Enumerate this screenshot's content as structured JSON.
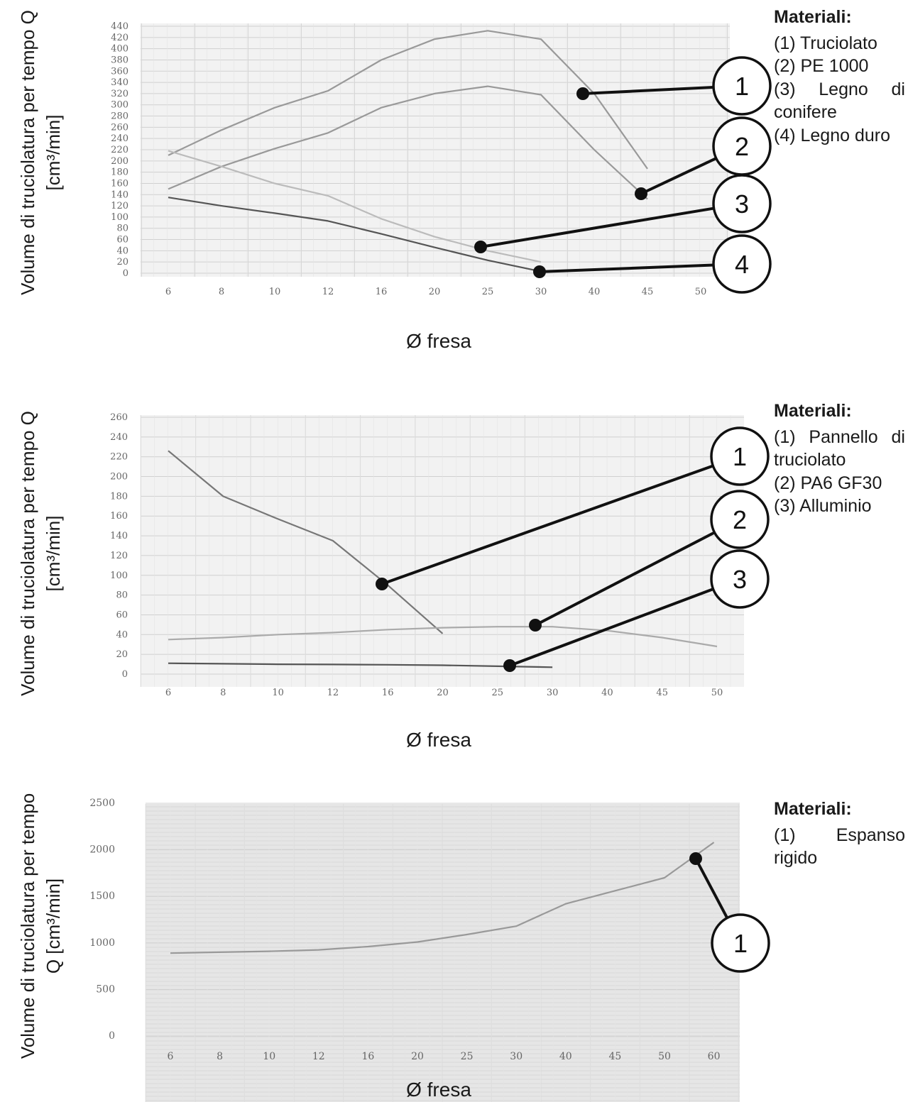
{
  "chart_data": [
    {
      "type": "line",
      "ylabel_lines": [
        "Volume di truciolatura per tempo Q",
        "[cm³/min]"
      ],
      "xlabel": "Ø fresa",
      "categories": [
        "6",
        "8",
        "10",
        "12",
        "16",
        "20",
        "25",
        "30",
        "40",
        "45",
        "50"
      ],
      "yticks": [
        "0",
        "20",
        "40",
        "60",
        "80",
        "100",
        "120",
        "140",
        "160",
        "180",
        "200",
        "220",
        "240",
        "260",
        "280",
        "300",
        "320",
        "340",
        "360",
        "380",
        "400",
        "420",
        "440"
      ],
      "ylim": [
        0,
        440
      ],
      "grid": true,
      "legend_title": "Materiali:",
      "legend_items": [
        "(1) Truciolato",
        "(2) PE 1000",
        "(3) Legno di conifere",
        "(4) Legno duro"
      ],
      "callouts": [
        "1",
        "2",
        "3",
        "4"
      ],
      "series": [
        {
          "values": [
            210,
            255,
            295,
            325,
            380,
            417,
            432,
            417,
            320,
            186,
            null
          ],
          "color": "#999999"
        },
        {
          "values": [
            150,
            190,
            222,
            250,
            295,
            320,
            333,
            318,
            220,
            132,
            null
          ],
          "color": "#999999"
        },
        {
          "values": [
            218,
            190,
            160,
            138,
            97,
            65,
            40,
            20,
            null,
            null,
            null
          ],
          "color": "#bbbbbb"
        },
        {
          "values": [
            135,
            120,
            107,
            93,
            70,
            46,
            23,
            3,
            null,
            null,
            null
          ],
          "color": "#555555"
        }
      ]
    },
    {
      "type": "line",
      "ylabel_lines": [
        "Volume di truciolatura per tempo Q",
        "[cm³/min]"
      ],
      "xlabel": "Ø fresa",
      "categories": [
        "6",
        "8",
        "10",
        "12",
        "16",
        "20",
        "25",
        "30",
        "40",
        "45",
        "50"
      ],
      "yticks": [
        "0",
        "20",
        "40",
        "60",
        "80",
        "100",
        "120",
        "140",
        "160",
        "180",
        "200",
        "220",
        "240",
        "260"
      ],
      "ylim": [
        0,
        260
      ],
      "grid": true,
      "legend_title": "Materiali:",
      "legend_items": [
        "(1) Pannello di truciolato",
        "(2) PA6 GF30",
        "(3) Alluminio"
      ],
      "callouts": [
        "1",
        "2",
        "3"
      ],
      "series": [
        {
          "values": [
            226,
            180,
            157,
            135,
            90,
            41,
            null,
            null,
            null,
            null,
            null
          ],
          "color": "#777777"
        },
        {
          "values": [
            35,
            37,
            40,
            42,
            45,
            47,
            48,
            48,
            44,
            37,
            28
          ],
          "color": "#aaaaaa"
        },
        {
          "values": [
            11,
            10.5,
            10,
            9.8,
            9.5,
            9,
            8,
            7,
            null,
            null,
            null
          ],
          "color": "#555555"
        }
      ]
    },
    {
      "type": "line",
      "ylabel_lines": [
        "Volume di truciolatura per tempo",
        "Q [cm³/min]"
      ],
      "xlabel": "Ø fresa",
      "categories": [
        "6",
        "8",
        "10",
        "12",
        "16",
        "20",
        "25",
        "30",
        "40",
        "45",
        "50",
        "60"
      ],
      "yticks": [
        "0",
        "500",
        "1000",
        "1500",
        "2000",
        "2500"
      ],
      "ylim": [
        0,
        2500
      ],
      "grid": true,
      "legend_title": "Materiali:",
      "legend_items": [
        "(1) Espanso rigido"
      ],
      "callouts": [
        "1"
      ],
      "series": [
        {
          "values": [
            890,
            900,
            910,
            925,
            960,
            1010,
            1090,
            1180,
            1420,
            1560,
            1700,
            2080
          ],
          "color": "#999999"
        }
      ]
    }
  ]
}
